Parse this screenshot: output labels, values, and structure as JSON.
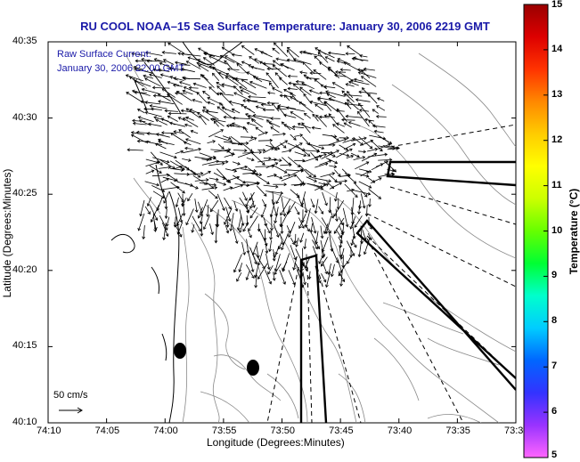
{
  "title": "RU COOL  NOAA–15  Sea Surface Temperature:  January 30, 2006 2219 GMT",
  "annotation": {
    "line1": "Raw Surface Current:",
    "line2": "January 30, 2006 22:00 GMT"
  },
  "scale_label": "50 cm/s",
  "xaxis": {
    "label": "Longitude (Degrees:Minutes)",
    "ticks": [
      "74:10",
      "74:05",
      "74:00",
      "73:55",
      "73:50",
      "73:45",
      "73:40",
      "73:35",
      "73:3"
    ]
  },
  "yaxis": {
    "label": "Latitude (Degrees:Minutes)",
    "ticks": [
      "40:35",
      "40:30",
      "40:25",
      "40:20",
      "40:15",
      "40:10"
    ]
  },
  "colorbar": {
    "label": "Temperature (°C)",
    "ticks": [
      "15",
      "14",
      "13",
      "12",
      "11",
      "10",
      "9",
      "8",
      "7",
      "6",
      "5"
    ],
    "stops": [
      "#ff66ff",
      "#9933ff",
      "#3333ff",
      "#0066ff",
      "#00ccff",
      "#00ffcc",
      "#00ff33",
      "#66ff00",
      "#ccff00",
      "#ffff00",
      "#ffcc00",
      "#ff8800",
      "#ff3300",
      "#dd0000",
      "#990000"
    ]
  },
  "colors": {
    "title": "#1a1aa8",
    "coast": "#000000",
    "contour": "#888888",
    "vector": "#000000"
  }
}
